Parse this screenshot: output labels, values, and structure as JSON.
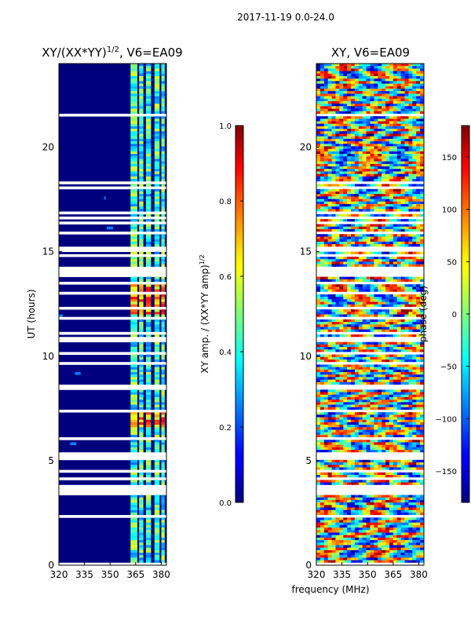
{
  "suptitle": "2017-11-19 0.0-24.0",
  "xlabel_shared": "frequency (MHz)",
  "chart_data": [
    {
      "type": "heatmap",
      "title_main": "XY/(XX*YY)",
      "title_sup": "1/2",
      "title_tail": ", V6=EA09",
      "ylabel": "UT (hours)",
      "xlim": [
        320,
        383
      ],
      "ylim": [
        0,
        24
      ],
      "xticks": [
        320,
        335,
        350,
        365,
        380
      ],
      "yticks": [
        0,
        5,
        10,
        15,
        20
      ],
      "colormap": "jet",
      "colorbar": {
        "label_main": "XY amp. / (XX*YY amp)",
        "label_sup": "1/2",
        "range": [
          0.0,
          1.0
        ],
        "ticks": [
          "0.0",
          "0.2",
          "0.4",
          "0.6",
          "0.8",
          "1.0"
        ]
      },
      "signal_bands_mhz": [
        [
          362,
          366
        ],
        [
          367,
          369.5
        ],
        [
          371,
          374
        ],
        [
          376,
          379
        ],
        [
          380,
          382
        ]
      ],
      "strong_intervals_ut": [
        [
          6.6,
          7.3
        ],
        [
          12.0,
          13.6
        ]
      ],
      "blank_intervals_ut": [
        [
          5.1,
          5.4
        ],
        [
          13.8,
          14.2
        ],
        [
          15.0,
          15.2
        ]
      ]
    },
    {
      "type": "heatmap",
      "title_main": "XY, V6=EA09",
      "xlim": [
        320,
        383
      ],
      "ylim": [
        0,
        24
      ],
      "xticks": [
        320,
        335,
        350,
        365,
        380
      ],
      "yticks": [
        0,
        5,
        10,
        15,
        20
      ],
      "colormap": "jet",
      "colorbar": {
        "label_main": "phase (deg)",
        "range": [
          -180,
          180
        ],
        "ticks": [
          "-150",
          "-100",
          "-50",
          "0",
          "50",
          "100",
          "150"
        ]
      },
      "blank_intervals_ut": [
        [
          5.1,
          5.4
        ],
        [
          13.8,
          14.2
        ],
        [
          15.0,
          15.2
        ]
      ]
    }
  ]
}
